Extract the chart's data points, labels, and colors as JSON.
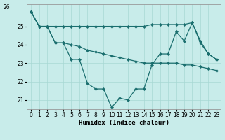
{
  "xlabel": "Humidex (Indice chaleur)",
  "bg_color": "#c8ecea",
  "line_color": "#1a6e6e",
  "grid_color": "#a8d8d4",
  "x": [
    0,
    1,
    2,
    3,
    4,
    5,
    6,
    7,
    8,
    9,
    10,
    11,
    12,
    13,
    14,
    15,
    16,
    17,
    18,
    19,
    20,
    21,
    22,
    23
  ],
  "line1": [
    25.8,
    25.0,
    25.0,
    24.1,
    24.1,
    23.2,
    23.2,
    21.9,
    21.6,
    21.6,
    20.6,
    21.1,
    21.0,
    21.6,
    21.6,
    22.9,
    23.5,
    23.5,
    24.7,
    24.2,
    25.2,
    24.1,
    23.5,
    23.2
  ],
  "line2": [
    25.8,
    25.0,
    25.0,
    25.0,
    25.0,
    25.0,
    25.0,
    25.0,
    25.0,
    25.0,
    25.0,
    25.0,
    25.0,
    25.0,
    25.0,
    25.1,
    25.1,
    25.1,
    25.1,
    25.1,
    25.2,
    24.2,
    23.5,
    23.2
  ],
  "line3": [
    25.8,
    25.0,
    25.0,
    24.1,
    24.1,
    24.0,
    23.9,
    23.7,
    23.6,
    23.5,
    23.4,
    23.3,
    23.2,
    23.1,
    23.0,
    23.0,
    23.0,
    23.0,
    23.0,
    22.9,
    22.9,
    22.8,
    22.7,
    22.6
  ],
  "ylim": [
    20.5,
    26.2
  ],
  "yticks": [
    21,
    22,
    23,
    24,
    25
  ],
  "xticks": [
    0,
    1,
    2,
    3,
    4,
    5,
    6,
    7,
    8,
    9,
    10,
    11,
    12,
    13,
    14,
    15,
    16,
    17,
    18,
    19,
    20,
    21,
    22,
    23
  ],
  "marker": "D",
  "markersize": 2.2,
  "linewidth": 0.9,
  "tick_fontsize": 5.5,
  "xlabel_fontsize": 6.5
}
